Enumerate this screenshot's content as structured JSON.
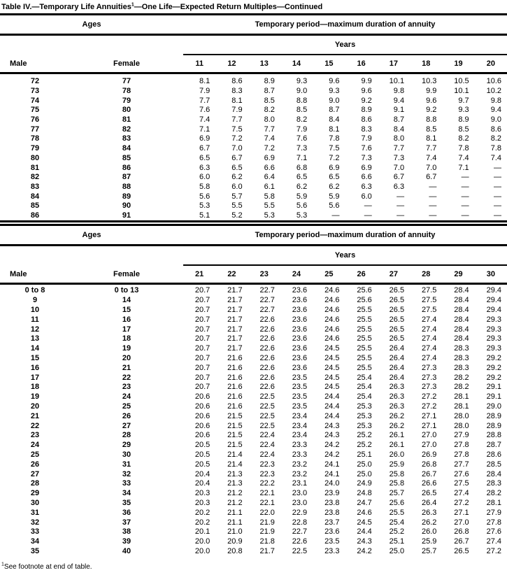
{
  "title": {
    "text": "Table IV.—Temporary Life Annuities",
    "footnote_mark": "1",
    "suffix": "—One Life—Expected Return Multiples—Continued"
  },
  "footnote": {
    "mark": "1",
    "text": "See footnote at end of table."
  },
  "tables": [
    {
      "ages_header": "Ages",
      "period_header": "Temporary period—maximum duration of annuity",
      "years_header": "Years",
      "male_header": "Male",
      "female_header": "Female",
      "columns": [
        "11",
        "12",
        "13",
        "14",
        "15",
        "16",
        "17",
        "18",
        "19",
        "20"
      ],
      "rows": [
        {
          "male": "72",
          "female": "77",
          "values": [
            "8.1",
            "8.6",
            "8.9",
            "9.3",
            "9.6",
            "9.9",
            "10.1",
            "10.3",
            "10.5",
            "10.6"
          ]
        },
        {
          "male": "73",
          "female": "78",
          "values": [
            "7.9",
            "8.3",
            "8.7",
            "9.0",
            "9.3",
            "9.6",
            "9.8",
            "9.9",
            "10.1",
            "10.2"
          ]
        },
        {
          "male": "74",
          "female": "79",
          "values": [
            "7.7",
            "8.1",
            "8.5",
            "8.8",
            "9.0",
            "9.2",
            "9.4",
            "9.6",
            "9.7",
            "9.8"
          ]
        },
        {
          "male": "75",
          "female": "80",
          "values": [
            "7.6",
            "7.9",
            "8.2",
            "8.5",
            "8.7",
            "8.9",
            "9.1",
            "9.2",
            "9.3",
            "9.4"
          ]
        },
        {
          "male": "76",
          "female": "81",
          "values": [
            "7.4",
            "7.7",
            "8.0",
            "8.2",
            "8.4",
            "8.6",
            "8.7",
            "8.8",
            "8.9",
            "9.0"
          ]
        },
        {
          "male": "77",
          "female": "82",
          "values": [
            "7.1",
            "7.5",
            "7.7",
            "7.9",
            "8.1",
            "8.3",
            "8.4",
            "8.5",
            "8.5",
            "8.6"
          ]
        },
        {
          "male": "78",
          "female": "83",
          "values": [
            "6.9",
            "7.2",
            "7.4",
            "7.6",
            "7.8",
            "7.9",
            "8.0",
            "8.1",
            "8.2",
            "8.2"
          ]
        },
        {
          "male": "79",
          "female": "84",
          "values": [
            "6.7",
            "7.0",
            "7.2",
            "7.3",
            "7.5",
            "7.6",
            "7.7",
            "7.7",
            "7.8",
            "7.8"
          ]
        },
        {
          "male": "80",
          "female": "85",
          "values": [
            "6.5",
            "6.7",
            "6.9",
            "7.1",
            "7.2",
            "7.3",
            "7.3",
            "7.4",
            "7.4",
            "7.4"
          ]
        },
        {
          "male": "81",
          "female": "86",
          "values": [
            "6.3",
            "6.5",
            "6.6",
            "6.8",
            "6.9",
            "6.9",
            "7.0",
            "7.0",
            "7.1",
            "—"
          ]
        },
        {
          "male": "82",
          "female": "87",
          "values": [
            "6.0",
            "6.2",
            "6.4",
            "6.5",
            "6.5",
            "6.6",
            "6.7",
            "6.7",
            "—",
            "—"
          ]
        },
        {
          "male": "83",
          "female": "88",
          "values": [
            "5.8",
            "6.0",
            "6.1",
            "6.2",
            "6.2",
            "6.3",
            "6.3",
            "—",
            "—",
            "—"
          ]
        },
        {
          "male": "84",
          "female": "89",
          "values": [
            "5.6",
            "5.7",
            "5.8",
            "5.9",
            "5.9",
            "6.0",
            "—",
            "—",
            "—",
            "—"
          ]
        },
        {
          "male": "85",
          "female": "90",
          "values": [
            "5.3",
            "5.5",
            "5.5",
            "5.6",
            "5.6",
            "—",
            "—",
            "—",
            "—",
            "—"
          ]
        },
        {
          "male": "86",
          "female": "91",
          "values": [
            "5.1",
            "5.2",
            "5.3",
            "5.3",
            "—",
            "—",
            "—",
            "—",
            "—",
            "—"
          ]
        }
      ]
    },
    {
      "ages_header": "Ages",
      "period_header": "Temporary period—maximum duration of annuity",
      "years_header": "Years",
      "male_header": "Male",
      "female_header": "Female",
      "columns": [
        "21",
        "22",
        "23",
        "24",
        "25",
        "26",
        "27",
        "28",
        "29",
        "30"
      ],
      "rows": [
        {
          "male": "0 to 8",
          "female": "0 to 13",
          "values": [
            "20.7",
            "21.7",
            "22.7",
            "23.6",
            "24.6",
            "25.6",
            "26.5",
            "27.5",
            "28.4",
            "29.4"
          ]
        },
        {
          "male": "9",
          "female": "14",
          "values": [
            "20.7",
            "21.7",
            "22.7",
            "23.6",
            "24.6",
            "25.6",
            "26.5",
            "27.5",
            "28.4",
            "29.4"
          ]
        },
        {
          "male": "10",
          "female": "15",
          "values": [
            "20.7",
            "21.7",
            "22.7",
            "23.6",
            "24.6",
            "25.5",
            "26.5",
            "27.5",
            "28.4",
            "29.4"
          ]
        },
        {
          "male": "11",
          "female": "16",
          "values": [
            "20.7",
            "21.7",
            "22.6",
            "23.6",
            "24.6",
            "25.5",
            "26.5",
            "27.4",
            "28.4",
            "29.3"
          ]
        },
        {
          "male": "12",
          "female": "17",
          "values": [
            "20.7",
            "21.7",
            "22.6",
            "23.6",
            "24.6",
            "25.5",
            "26.5",
            "27.4",
            "28.4",
            "29.3"
          ]
        },
        {
          "male": "13",
          "female": "18",
          "values": [
            "20.7",
            "21.7",
            "22.6",
            "23.6",
            "24.6",
            "25.5",
            "26.5",
            "27.4",
            "28.4",
            "29.3"
          ]
        },
        {
          "male": "14",
          "female": "19",
          "values": [
            "20.7",
            "21.7",
            "22.6",
            "23.6",
            "24.5",
            "25.5",
            "26.4",
            "27.4",
            "28.3",
            "29.3"
          ]
        },
        {
          "male": "15",
          "female": "20",
          "values": [
            "20.7",
            "21.6",
            "22.6",
            "23.6",
            "24.5",
            "25.5",
            "26.4",
            "27.4",
            "28.3",
            "29.2"
          ]
        },
        {
          "male": "16",
          "female": "21",
          "values": [
            "20.7",
            "21.6",
            "22.6",
            "23.6",
            "24.5",
            "25.5",
            "26.4",
            "27.3",
            "28.3",
            "29.2"
          ]
        },
        {
          "male": "17",
          "female": "22",
          "values": [
            "20.7",
            "21.6",
            "22.6",
            "23.5",
            "24.5",
            "25.4",
            "26.4",
            "27.3",
            "28.2",
            "29.2"
          ]
        },
        {
          "male": "18",
          "female": "23",
          "values": [
            "20.7",
            "21.6",
            "22.6",
            "23.5",
            "24.5",
            "25.4",
            "26.3",
            "27.3",
            "28.2",
            "29.1"
          ]
        },
        {
          "male": "19",
          "female": "24",
          "values": [
            "20.6",
            "21.6",
            "22.5",
            "23.5",
            "24.4",
            "25.4",
            "26.3",
            "27.2",
            "28.1",
            "29.1"
          ]
        },
        {
          "male": "20",
          "female": "25",
          "values": [
            "20.6",
            "21.6",
            "22.5",
            "23.5",
            "24.4",
            "25.3",
            "26.3",
            "27.2",
            "28.1",
            "29.0"
          ]
        },
        {
          "male": "21",
          "female": "26",
          "values": [
            "20.6",
            "21.5",
            "22.5",
            "23.4",
            "24.4",
            "25.3",
            "26.2",
            "27.1",
            "28.0",
            "28.9"
          ]
        },
        {
          "male": "22",
          "female": "27",
          "values": [
            "20.6",
            "21.5",
            "22.5",
            "23.4",
            "24.3",
            "25.3",
            "26.2",
            "27.1",
            "28.0",
            "28.9"
          ]
        },
        {
          "male": "23",
          "female": "28",
          "values": [
            "20.6",
            "21.5",
            "22.4",
            "23.4",
            "24.3",
            "25.2",
            "26.1",
            "27.0",
            "27.9",
            "28.8"
          ]
        },
        {
          "male": "24",
          "female": "29",
          "values": [
            "20.5",
            "21.5",
            "22.4",
            "23.3",
            "24.2",
            "25.2",
            "26.1",
            "27.0",
            "27.8",
            "28.7"
          ]
        },
        {
          "male": "25",
          "female": "30",
          "values": [
            "20.5",
            "21.4",
            "22.4",
            "23.3",
            "24.2",
            "25.1",
            "26.0",
            "26.9",
            "27.8",
            "28.6"
          ]
        },
        {
          "male": "26",
          "female": "31",
          "values": [
            "20.5",
            "21.4",
            "22.3",
            "23.2",
            "24.1",
            "25.0",
            "25.9",
            "26.8",
            "27.7",
            "28.5"
          ]
        },
        {
          "male": "27",
          "female": "32",
          "values": [
            "20.4",
            "21.3",
            "22.3",
            "23.2",
            "24.1",
            "25.0",
            "25.8",
            "26.7",
            "27.6",
            "28.4"
          ]
        },
        {
          "male": "28",
          "female": "33",
          "values": [
            "20.4",
            "21.3",
            "22.2",
            "23.1",
            "24.0",
            "24.9",
            "25.8",
            "26.6",
            "27.5",
            "28.3"
          ]
        },
        {
          "male": "29",
          "female": "34",
          "values": [
            "20.3",
            "21.2",
            "22.1",
            "23.0",
            "23.9",
            "24.8",
            "25.7",
            "26.5",
            "27.4",
            "28.2"
          ]
        },
        {
          "male": "30",
          "female": "35",
          "values": [
            "20.3",
            "21.2",
            "22.1",
            "23.0",
            "23.8",
            "24.7",
            "25.6",
            "26.4",
            "27.2",
            "28.1"
          ]
        },
        {
          "male": "31",
          "female": "36",
          "values": [
            "20.2",
            "21.1",
            "22.0",
            "22.9",
            "23.8",
            "24.6",
            "25.5",
            "26.3",
            "27.1",
            "27.9"
          ]
        },
        {
          "male": "32",
          "female": "37",
          "values": [
            "20.2",
            "21.1",
            "21.9",
            "22.8",
            "23.7",
            "24.5",
            "25.4",
            "26.2",
            "27.0",
            "27.8"
          ]
        },
        {
          "male": "33",
          "female": "38",
          "values": [
            "20.1",
            "21.0",
            "21.9",
            "22.7",
            "23.6",
            "24.4",
            "25.2",
            "26.0",
            "26.8",
            "27.6"
          ]
        },
        {
          "male": "34",
          "female": "39",
          "values": [
            "20.0",
            "20.9",
            "21.8",
            "22.6",
            "23.5",
            "24.3",
            "25.1",
            "25.9",
            "26.7",
            "27.4"
          ]
        },
        {
          "male": "35",
          "female": "40",
          "values": [
            "20.0",
            "20.8",
            "21.7",
            "22.5",
            "23.3",
            "24.2",
            "25.0",
            "25.7",
            "26.5",
            "27.2"
          ]
        }
      ]
    }
  ]
}
